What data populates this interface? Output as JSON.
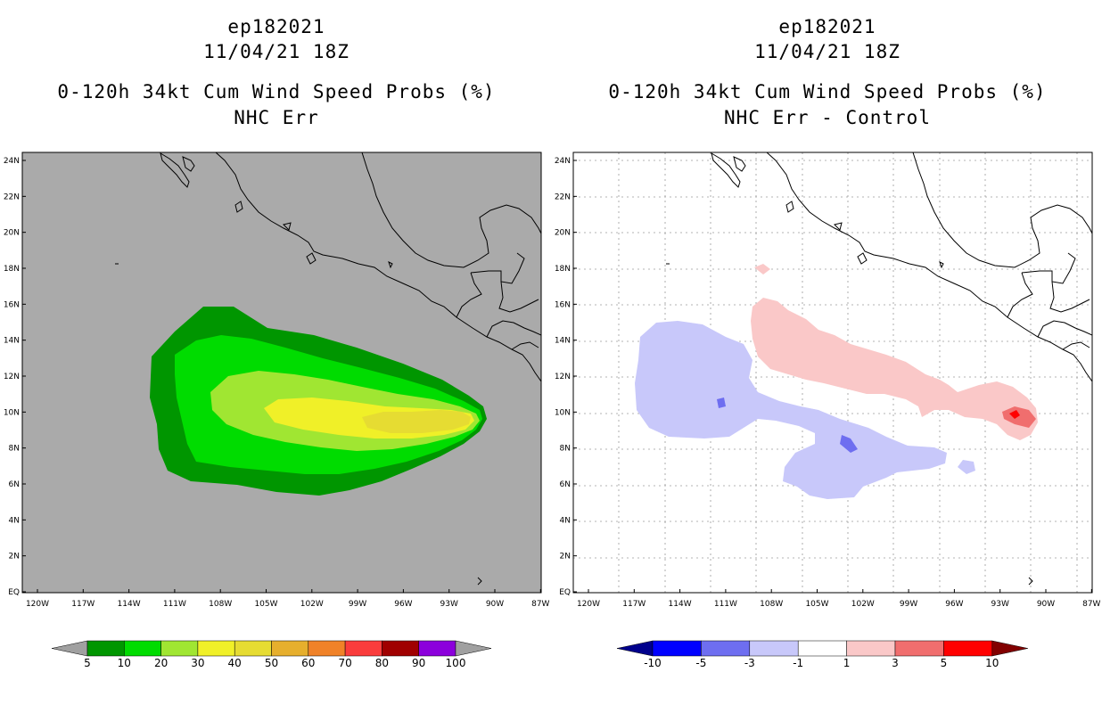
{
  "left_panel": {
    "title": [
      "ep182021",
      "11/04/21 18Z",
      "0-120h 34kt Cum Wind Speed Probs (%)",
      "NHC Err"
    ],
    "colorbar": {
      "labels": [
        "5",
        "10",
        "20",
        "30",
        "40",
        "50",
        "60",
        "70",
        "80",
        "90",
        "100"
      ],
      "colors": [
        "#009600",
        "#00dc00",
        "#a0e632",
        "#f0f028",
        "#e6dc32",
        "#e6af2d",
        "#f08228",
        "#fa3c3c",
        "#a00000",
        "#8c00dc"
      ],
      "end_color": "#a0a0a0"
    }
  },
  "right_panel": {
    "title": [
      "ep182021",
      "11/04/21 18Z",
      "0-120h 34kt Cum Wind Speed Probs (%)",
      "NHC Err - Control"
    ],
    "colorbar": {
      "labels": [
        "-10",
        "-5",
        "-3",
        "-1",
        "1",
        "3",
        "5",
        "10"
      ],
      "colors": [
        "#0000ff",
        "#6e6ef0",
        "#c8c8fa",
        "#ffffff",
        "#fac8c8",
        "#f06e6e",
        "#ff0000"
      ],
      "low_end_color": "#00008c",
      "high_end_color": "#820000"
    }
  },
  "map": {
    "lat_labels": [
      "24N",
      "22N",
      "20N",
      "18N",
      "16N",
      "14N",
      "12N",
      "10N",
      "8N",
      "6N",
      "4N",
      "2N",
      "EQ"
    ],
    "lon_labels": [
      "120W",
      "117W",
      "114W",
      "111W",
      "108W",
      "105W",
      "102W",
      "99W",
      "96W",
      "93W",
      "90W",
      "87W"
    ],
    "background_color": "#aaaaaa",
    "land_outline_color": "#000000"
  }
}
